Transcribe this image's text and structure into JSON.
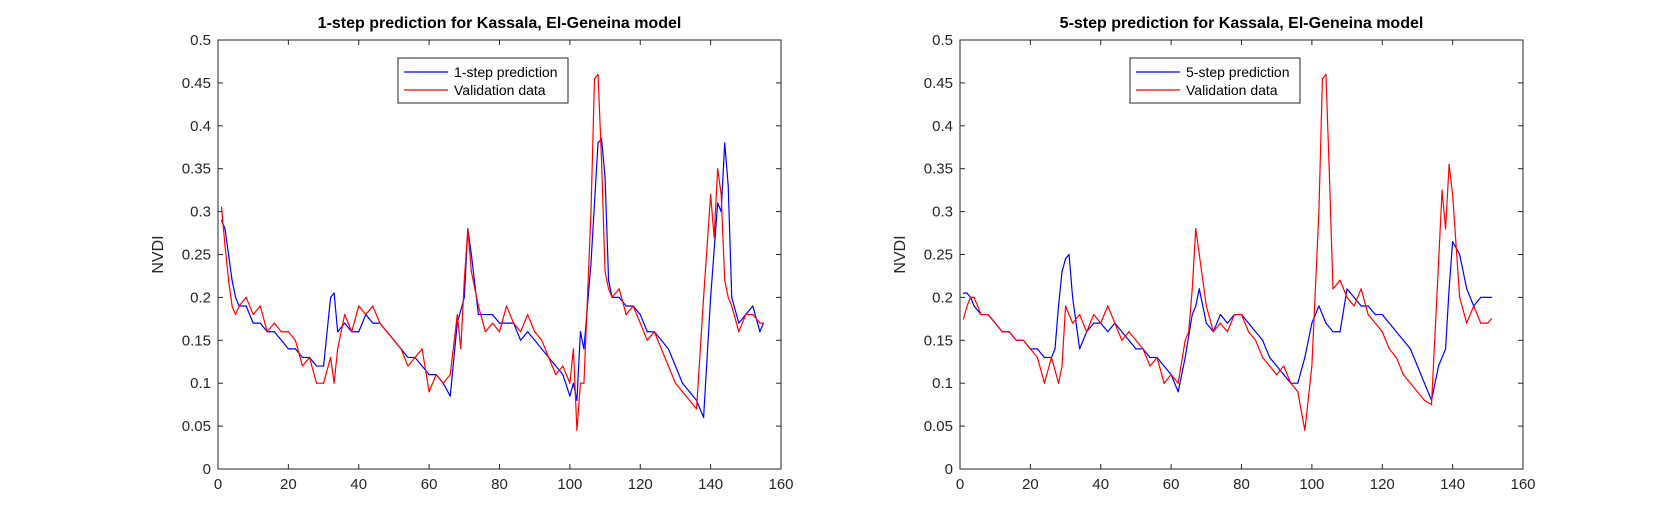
{
  "chart_data": [
    {
      "type": "line",
      "title": "1-step prediction for Kassala, El-Geneina model",
      "xlabel": "",
      "ylabel": "NVDI",
      "xlim": [
        0,
        160
      ],
      "ylim": [
        0,
        0.5
      ],
      "xticks": [
        0,
        20,
        40,
        60,
        80,
        100,
        120,
        140,
        160
      ],
      "yticks": [
        0,
        0.05,
        0.1,
        0.15,
        0.2,
        0.25,
        0.3,
        0.35,
        0.4,
        0.45,
        0.5
      ],
      "xtick_labels": [
        "0",
        "20",
        "40",
        "60",
        "80",
        "100",
        "120",
        "140",
        "160"
      ],
      "ytick_labels": [
        "0",
        "0.05",
        "0.1",
        "0.15",
        "0.2",
        "0.25",
        "0.3",
        "0.35",
        "0.4",
        "0.45",
        "0.5"
      ],
      "grid": false,
      "legend_position": "top-center",
      "series": [
        {
          "name": "1-step prediction",
          "color": "#0000ff",
          "x": [
            1,
            2,
            3,
            4,
            5,
            6,
            8,
            10,
            12,
            14,
            16,
            18,
            20,
            22,
            24,
            26,
            28,
            30,
            32,
            33,
            34,
            36,
            38,
            40,
            42,
            44,
            46,
            48,
            50,
            52,
            54,
            56,
            58,
            60,
            62,
            64,
            66,
            68,
            70,
            71,
            72,
            74,
            76,
            78,
            80,
            82,
            84,
            86,
            88,
            90,
            92,
            94,
            96,
            98,
            100,
            101,
            102,
            103,
            104,
            106,
            108,
            109,
            110,
            111,
            112,
            114,
            116,
            118,
            120,
            122,
            124,
            126,
            128,
            130,
            132,
            134,
            136,
            138,
            140,
            142,
            143,
            144,
            145,
            146,
            148,
            150,
            152,
            154,
            155
          ],
          "y": [
            0.29,
            0.28,
            0.25,
            0.22,
            0.2,
            0.19,
            0.19,
            0.17,
            0.17,
            0.16,
            0.16,
            0.15,
            0.14,
            0.14,
            0.13,
            0.13,
            0.12,
            0.12,
            0.2,
            0.205,
            0.16,
            0.17,
            0.16,
            0.16,
            0.18,
            0.17,
            0.17,
            0.16,
            0.15,
            0.14,
            0.13,
            0.13,
            0.12,
            0.11,
            0.11,
            0.1,
            0.085,
            0.17,
            0.2,
            0.28,
            0.25,
            0.18,
            0.18,
            0.18,
            0.17,
            0.17,
            0.17,
            0.15,
            0.16,
            0.15,
            0.14,
            0.13,
            0.12,
            0.11,
            0.085,
            0.1,
            0.08,
            0.16,
            0.14,
            0.24,
            0.38,
            0.385,
            0.34,
            0.22,
            0.2,
            0.2,
            0.19,
            0.19,
            0.18,
            0.16,
            0.16,
            0.15,
            0.14,
            0.12,
            0.1,
            0.09,
            0.08,
            0.06,
            0.2,
            0.31,
            0.3,
            0.38,
            0.33,
            0.2,
            0.17,
            0.18,
            0.19,
            0.16,
            0.17
          ]
        },
        {
          "name": "Validation data",
          "color": "#ff0000",
          "x": [
            1,
            2,
            3,
            4,
            5,
            6,
            8,
            10,
            12,
            14,
            16,
            18,
            20,
            22,
            24,
            26,
            28,
            30,
            32,
            33,
            34,
            36,
            38,
            40,
            42,
            44,
            46,
            48,
            50,
            52,
            54,
            56,
            58,
            60,
            62,
            64,
            66,
            68,
            69,
            70,
            71,
            72,
            74,
            76,
            78,
            80,
            82,
            84,
            86,
            88,
            90,
            92,
            94,
            96,
            98,
            100,
            101,
            102,
            103,
            104,
            106,
            107,
            108,
            109,
            110,
            111,
            112,
            114,
            116,
            118,
            120,
            122,
            124,
            126,
            128,
            130,
            132,
            134,
            136,
            138,
            140,
            141,
            142,
            143,
            144,
            145,
            146,
            148,
            150,
            152,
            154,
            155
          ],
          "y": [
            0.305,
            0.26,
            0.22,
            0.19,
            0.18,
            0.19,
            0.2,
            0.18,
            0.19,
            0.16,
            0.17,
            0.16,
            0.16,
            0.15,
            0.12,
            0.13,
            0.1,
            0.1,
            0.13,
            0.1,
            0.14,
            0.18,
            0.16,
            0.19,
            0.18,
            0.19,
            0.17,
            0.16,
            0.15,
            0.14,
            0.12,
            0.13,
            0.14,
            0.09,
            0.11,
            0.1,
            0.11,
            0.18,
            0.14,
            0.22,
            0.28,
            0.23,
            0.19,
            0.16,
            0.17,
            0.16,
            0.19,
            0.17,
            0.16,
            0.18,
            0.16,
            0.15,
            0.13,
            0.11,
            0.12,
            0.1,
            0.14,
            0.045,
            0.1,
            0.1,
            0.3,
            0.455,
            0.46,
            0.36,
            0.23,
            0.21,
            0.2,
            0.21,
            0.18,
            0.19,
            0.17,
            0.15,
            0.16,
            0.14,
            0.12,
            0.1,
            0.09,
            0.08,
            0.07,
            0.2,
            0.32,
            0.27,
            0.35,
            0.32,
            0.22,
            0.2,
            0.19,
            0.16,
            0.18,
            0.18,
            0.17,
            0.17
          ]
        }
      ]
    },
    {
      "type": "line",
      "title": "5-step prediction for Kassala, El-Geneina model",
      "xlabel": "",
      "ylabel": "NVDI",
      "xlim": [
        0,
        160
      ],
      "ylim": [
        0,
        0.5
      ],
      "xticks": [
        0,
        20,
        40,
        60,
        80,
        100,
        120,
        140,
        160
      ],
      "yticks": [
        0,
        0.05,
        0.1,
        0.15,
        0.2,
        0.25,
        0.3,
        0.35,
        0.4,
        0.45,
        0.5
      ],
      "xtick_labels": [
        "0",
        "20",
        "40",
        "60",
        "80",
        "100",
        "120",
        "140",
        "160"
      ],
      "ytick_labels": [
        "0",
        "0.05",
        "0.1",
        "0.15",
        "0.2",
        "0.25",
        "0.3",
        "0.35",
        "0.4",
        "0.45",
        "0.5"
      ],
      "grid": false,
      "legend_position": "top-center",
      "series": [
        {
          "name": "5-step prediction",
          "color": "#0000ff",
          "x": [
            1,
            2,
            3,
            4,
            6,
            8,
            10,
            12,
            14,
            16,
            18,
            20,
            22,
            24,
            26,
            27,
            28,
            29,
            30,
            31,
            32,
            34,
            36,
            38,
            40,
            42,
            44,
            46,
            48,
            50,
            52,
            54,
            56,
            58,
            60,
            62,
            64,
            66,
            67,
            68,
            70,
            72,
            74,
            76,
            78,
            80,
            82,
            84,
            86,
            88,
            90,
            92,
            94,
            96,
            98,
            100,
            102,
            104,
            106,
            108,
            110,
            112,
            114,
            116,
            118,
            120,
            122,
            124,
            126,
            128,
            130,
            132,
            134,
            136,
            138,
            139,
            140,
            142,
            144,
            146,
            148,
            150,
            151
          ],
          "y": [
            0.205,
            0.205,
            0.2,
            0.19,
            0.18,
            0.18,
            0.17,
            0.16,
            0.16,
            0.15,
            0.15,
            0.14,
            0.14,
            0.13,
            0.13,
            0.14,
            0.19,
            0.23,
            0.245,
            0.25,
            0.2,
            0.14,
            0.16,
            0.17,
            0.17,
            0.16,
            0.17,
            0.16,
            0.15,
            0.14,
            0.14,
            0.13,
            0.13,
            0.12,
            0.11,
            0.09,
            0.13,
            0.18,
            0.19,
            0.21,
            0.17,
            0.16,
            0.18,
            0.17,
            0.18,
            0.18,
            0.17,
            0.16,
            0.15,
            0.13,
            0.12,
            0.11,
            0.1,
            0.1,
            0.13,
            0.17,
            0.19,
            0.17,
            0.16,
            0.16,
            0.21,
            0.2,
            0.19,
            0.19,
            0.18,
            0.18,
            0.17,
            0.16,
            0.15,
            0.14,
            0.12,
            0.1,
            0.08,
            0.12,
            0.14,
            0.21,
            0.265,
            0.25,
            0.21,
            0.19,
            0.2,
            0.2,
            0.2
          ]
        },
        {
          "name": "Validation data",
          "color": "#ff0000",
          "x": [
            1,
            2,
            3,
            4,
            6,
            8,
            10,
            12,
            14,
            16,
            18,
            20,
            22,
            24,
            26,
            28,
            29,
            30,
            32,
            34,
            36,
            38,
            40,
            42,
            44,
            46,
            48,
            50,
            52,
            54,
            56,
            58,
            60,
            62,
            64,
            65,
            66,
            67,
            68,
            70,
            72,
            74,
            76,
            78,
            80,
            82,
            84,
            86,
            88,
            90,
            92,
            94,
            96,
            98,
            100,
            102,
            103,
            104,
            105,
            106,
            108,
            110,
            112,
            114,
            116,
            118,
            120,
            122,
            124,
            126,
            128,
            130,
            132,
            134,
            136,
            137,
            138,
            139,
            140,
            142,
            144,
            146,
            148,
            150,
            151
          ],
          "y": [
            0.175,
            0.19,
            0.2,
            0.2,
            0.18,
            0.18,
            0.17,
            0.16,
            0.16,
            0.15,
            0.15,
            0.14,
            0.13,
            0.1,
            0.13,
            0.1,
            0.12,
            0.19,
            0.17,
            0.18,
            0.16,
            0.18,
            0.17,
            0.19,
            0.17,
            0.15,
            0.16,
            0.15,
            0.14,
            0.12,
            0.13,
            0.1,
            0.11,
            0.1,
            0.15,
            0.16,
            0.21,
            0.28,
            0.25,
            0.19,
            0.16,
            0.17,
            0.16,
            0.18,
            0.18,
            0.16,
            0.15,
            0.13,
            0.12,
            0.11,
            0.12,
            0.1,
            0.09,
            0.045,
            0.12,
            0.3,
            0.455,
            0.46,
            0.34,
            0.21,
            0.22,
            0.2,
            0.19,
            0.21,
            0.18,
            0.17,
            0.16,
            0.14,
            0.13,
            0.11,
            0.1,
            0.09,
            0.08,
            0.075,
            0.24,
            0.325,
            0.28,
            0.355,
            0.32,
            0.2,
            0.17,
            0.19,
            0.17,
            0.17,
            0.175
          ]
        }
      ]
    }
  ]
}
